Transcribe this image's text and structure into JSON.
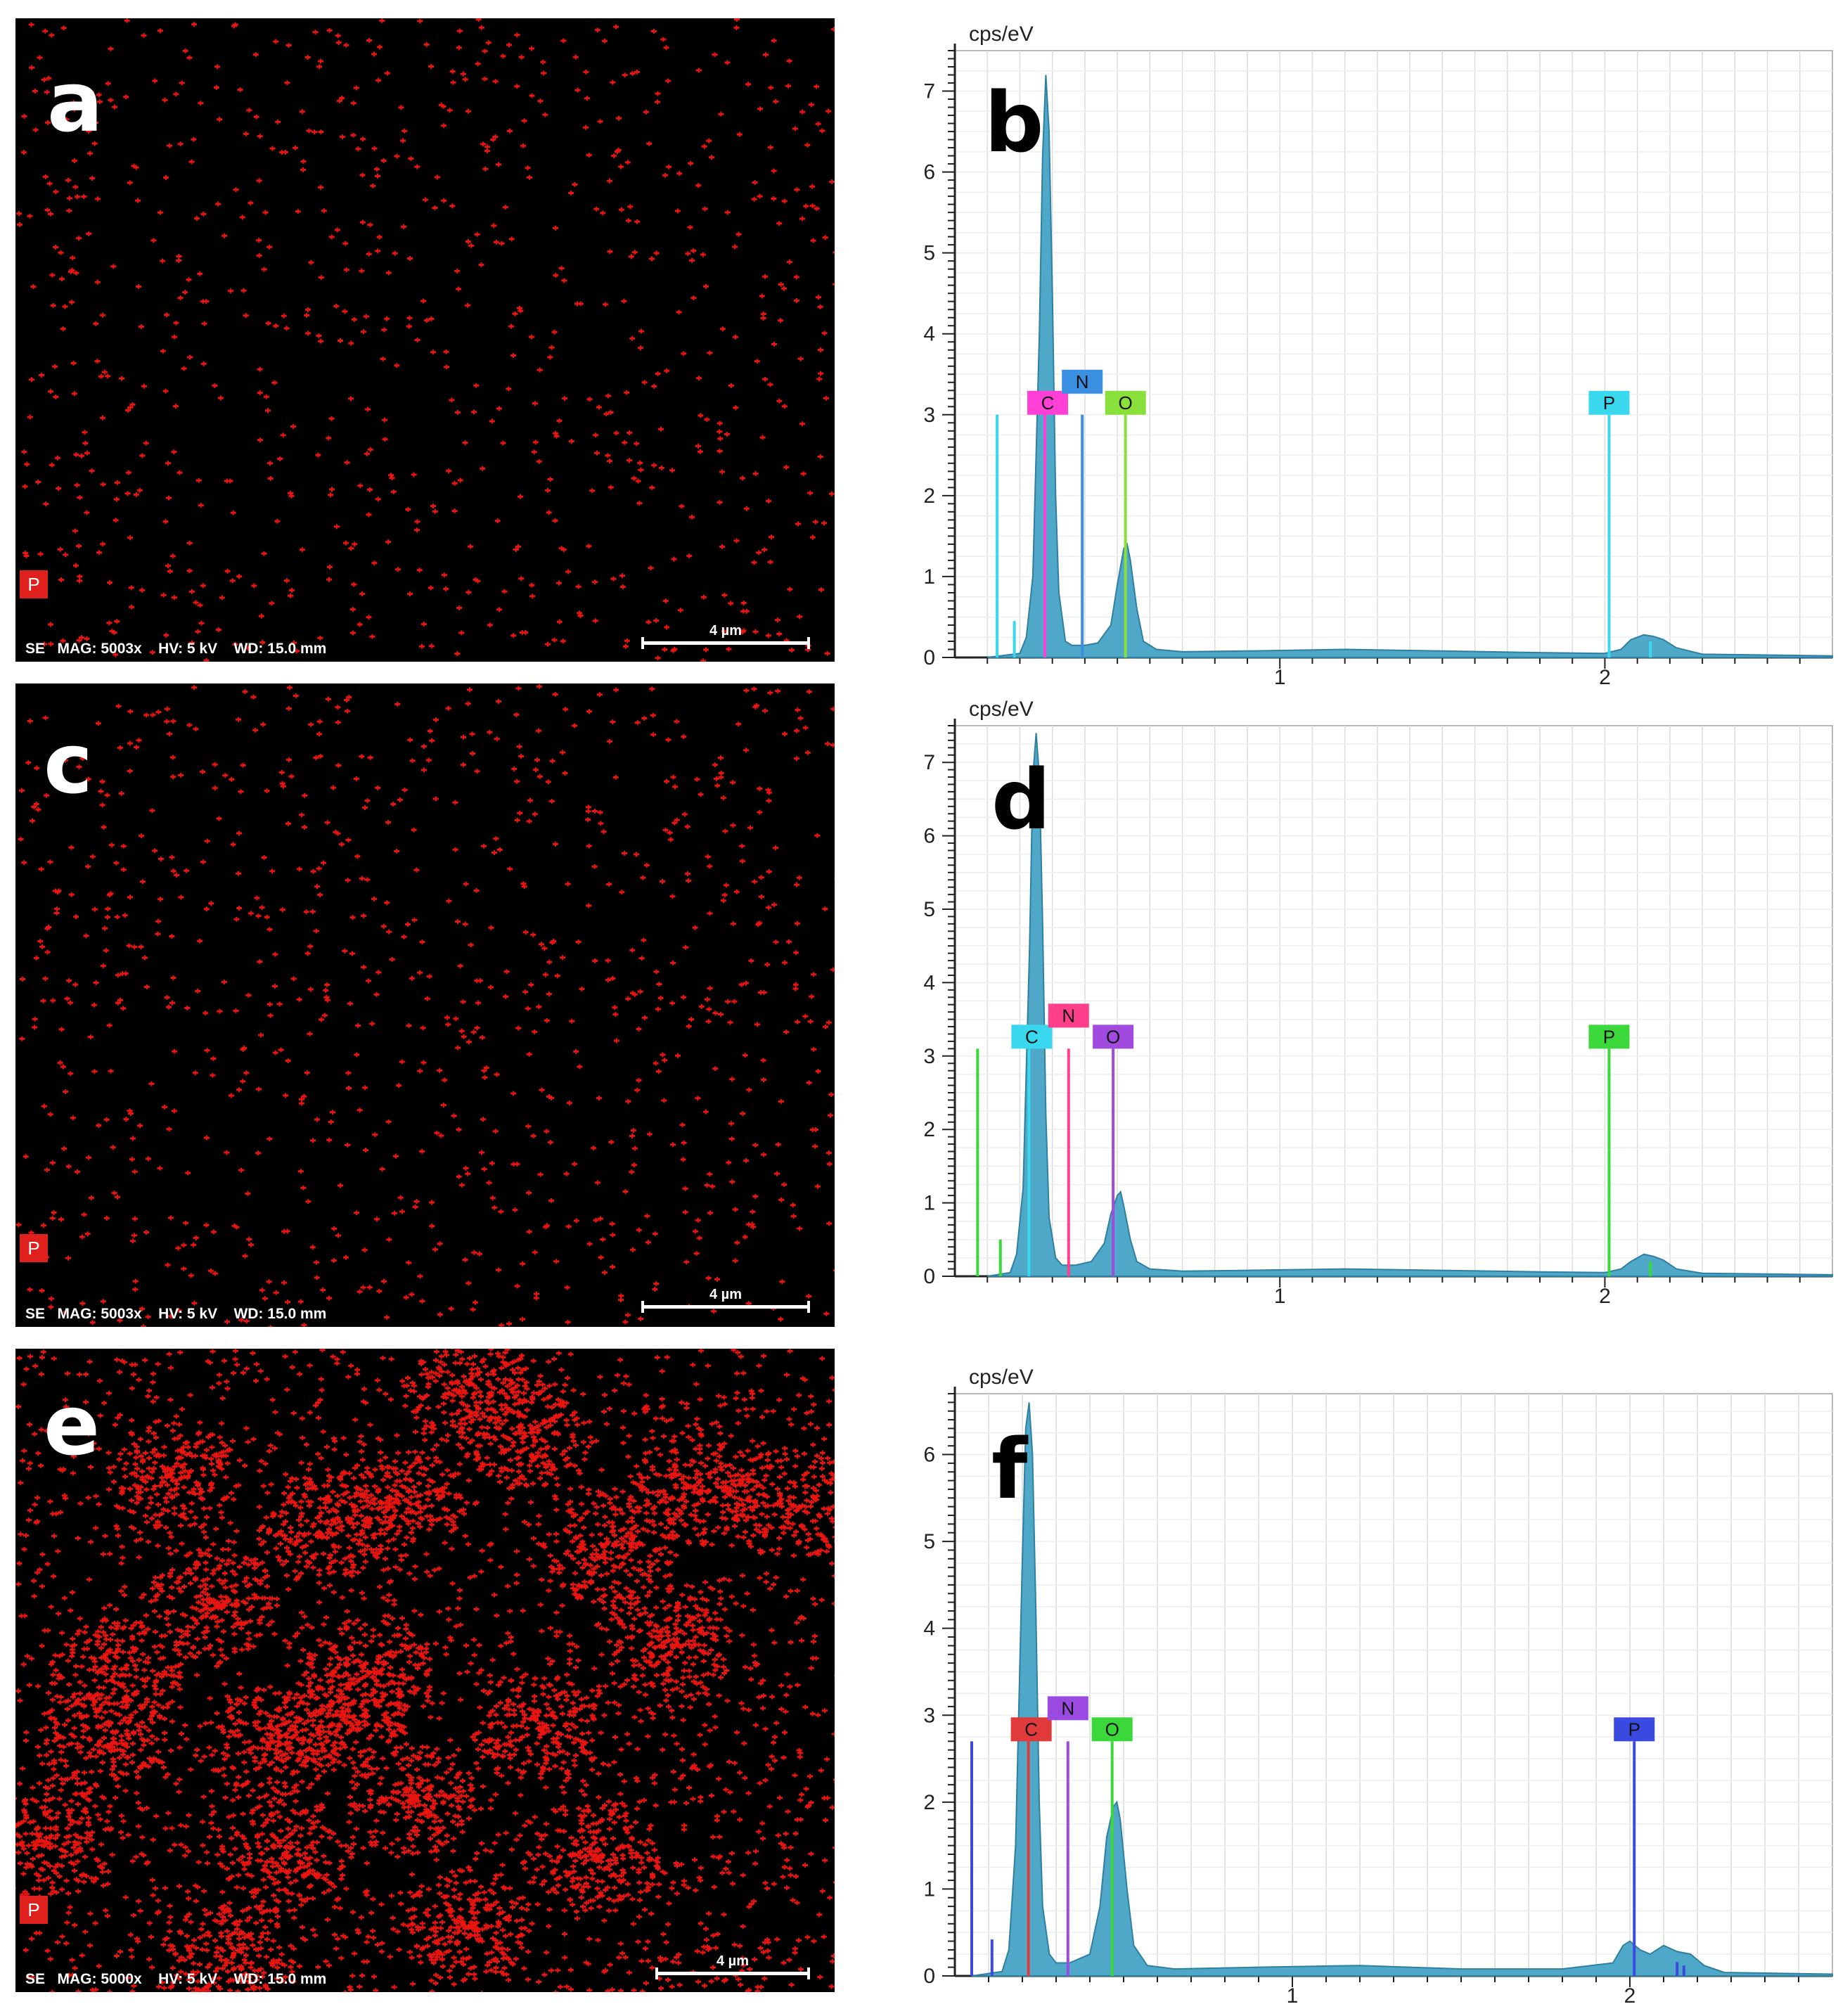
{
  "maps": [
    {
      "letter": "a",
      "element_badge": "P",
      "info": "SE   MAG: 5003x    HV: 5 kV    WD: 15.0 mm",
      "scale_label": "4 µm",
      "density": 0.9
    },
    {
      "letter": "c",
      "element_badge": "P",
      "info": "SE   MAG: 5003x    HV: 5 kV    WD: 15.0 mm",
      "scale_label": "4 µm",
      "density": 1.0
    },
    {
      "letter": "e",
      "element_badge": "P",
      "info": "SE   MAG: 5000x    HV: 5 kV    WD: 15.0 mm",
      "scale_label": "4 µm",
      "density": 2.6
    }
  ],
  "chart_data": [
    {
      "type": "area",
      "letter": "b",
      "ylabel": "cps/eV",
      "xlim": [
        0,
        2.7
      ],
      "ylim": [
        0,
        7.5
      ],
      "xticks": [
        1,
        2
      ],
      "yticks": [
        0,
        1,
        2,
        3,
        4,
        5,
        6,
        7
      ],
      "grid": true,
      "spectrum": {
        "x": [
          0.1,
          0.2,
          0.22,
          0.24,
          0.26,
          0.27,
          0.28,
          0.29,
          0.3,
          0.31,
          0.32,
          0.34,
          0.36,
          0.4,
          0.44,
          0.48,
          0.5,
          0.52,
          0.53,
          0.54,
          0.56,
          0.58,
          0.62,
          0.7,
          0.9,
          1.2,
          1.5,
          1.8,
          2.0,
          2.05,
          2.08,
          2.12,
          2.15,
          2.18,
          2.22,
          2.3,
          2.7
        ],
        "y": [
          0,
          0.05,
          0.25,
          1.0,
          4.0,
          6.2,
          7.2,
          6.5,
          4.5,
          2.0,
          0.8,
          0.2,
          0.15,
          0.15,
          0.18,
          0.4,
          0.9,
          1.35,
          1.4,
          1.2,
          0.6,
          0.2,
          0.1,
          0.07,
          0.08,
          0.1,
          0.08,
          0.06,
          0.05,
          0.1,
          0.22,
          0.28,
          0.26,
          0.22,
          0.12,
          0.04,
          0.02
        ]
      },
      "markers": [
        {
          "label": "C",
          "x": 0.277,
          "height": 3.0,
          "color": "#ff3fd6"
        },
        {
          "label": "N",
          "x": 0.392,
          "height": 3.0,
          "color": "#3a8fe0"
        },
        {
          "label": "O",
          "x": 0.525,
          "height": 3.0,
          "color": "#8ae03a"
        },
        {
          "label": "P",
          "x": 2.013,
          "height": 3.0,
          "color": "#3ad8ef"
        }
      ],
      "extra_lines": [
        {
          "x": 0.13,
          "height": 3.0,
          "color": "#3ad8ef"
        },
        {
          "x": 0.183,
          "height": 0.45,
          "color": "#3ad8ef"
        },
        {
          "x": 2.14,
          "height": 0.2,
          "color": "#3ad8ef"
        }
      ]
    },
    {
      "type": "area",
      "letter": "d",
      "ylabel": "cps/eV",
      "xlim": [
        0,
        2.7
      ],
      "ylim": [
        0,
        7.5
      ],
      "xticks": [
        1,
        2
      ],
      "yticks": [
        0,
        1,
        2,
        3,
        4,
        5,
        6,
        7
      ],
      "grid": true,
      "spectrum": {
        "x": [
          0.1,
          0.17,
          0.19,
          0.21,
          0.23,
          0.24,
          0.25,
          0.26,
          0.27,
          0.28,
          0.29,
          0.31,
          0.33,
          0.37,
          0.42,
          0.46,
          0.48,
          0.5,
          0.51,
          0.52,
          0.54,
          0.56,
          0.6,
          0.7,
          0.9,
          1.2,
          1.5,
          1.8,
          2.0,
          2.05,
          2.08,
          2.12,
          2.15,
          2.18,
          2.22,
          2.3,
          2.7
        ],
        "y": [
          0,
          0.05,
          0.3,
          1.2,
          4.5,
          6.8,
          7.4,
          6.8,
          4.8,
          2.2,
          0.8,
          0.25,
          0.15,
          0.15,
          0.2,
          0.45,
          0.85,
          1.1,
          1.15,
          0.95,
          0.5,
          0.2,
          0.1,
          0.07,
          0.08,
          0.1,
          0.08,
          0.06,
          0.05,
          0.1,
          0.2,
          0.3,
          0.27,
          0.22,
          0.1,
          0.04,
          0.02
        ]
      },
      "markers": [
        {
          "label": "C",
          "x": 0.228,
          "height": 3.1,
          "color": "#3ad8ef"
        },
        {
          "label": "N",
          "x": 0.35,
          "height": 3.1,
          "color": "#ff3f8a"
        },
        {
          "label": "O",
          "x": 0.487,
          "height": 3.1,
          "color": "#a04ae0"
        },
        {
          "label": "P",
          "x": 2.013,
          "height": 3.1,
          "color": "#3ad83a"
        }
      ],
      "extra_lines": [
        {
          "x": 0.07,
          "height": 3.1,
          "color": "#3ad83a"
        },
        {
          "x": 0.14,
          "height": 0.5,
          "color": "#3ad83a"
        },
        {
          "x": 2.14,
          "height": 0.2,
          "color": "#3ad83a"
        }
      ]
    },
    {
      "type": "area",
      "letter": "f",
      "ylabel": "cps/eV",
      "xlim": [
        0,
        2.6
      ],
      "ylim": [
        0,
        6.7
      ],
      "xticks": [
        1,
        2
      ],
      "yticks": [
        0,
        1,
        2,
        3,
        4,
        5,
        6
      ],
      "grid": true,
      "spectrum": {
        "x": [
          0.05,
          0.14,
          0.16,
          0.18,
          0.2,
          0.21,
          0.22,
          0.23,
          0.24,
          0.25,
          0.26,
          0.28,
          0.3,
          0.34,
          0.4,
          0.43,
          0.45,
          0.47,
          0.48,
          0.49,
          0.51,
          0.53,
          0.57,
          0.65,
          0.9,
          1.2,
          1.5,
          1.8,
          1.95,
          1.98,
          2.0,
          2.03,
          2.06,
          2.1,
          2.14,
          2.18,
          2.22,
          2.28,
          2.6
        ],
        "y": [
          0,
          0.05,
          0.3,
          1.5,
          4.8,
          6.3,
          6.6,
          6.0,
          4.2,
          2.0,
          0.8,
          0.25,
          0.15,
          0.15,
          0.25,
          0.8,
          1.6,
          1.95,
          2.0,
          1.8,
          1.0,
          0.35,
          0.12,
          0.08,
          0.1,
          0.12,
          0.08,
          0.08,
          0.15,
          0.35,
          0.4,
          0.3,
          0.25,
          0.35,
          0.28,
          0.25,
          0.12,
          0.04,
          0.02
        ]
      },
      "markers": [
        {
          "label": "C",
          "x": 0.218,
          "height": 2.7,
          "color": "#e03a3a"
        },
        {
          "label": "N",
          "x": 0.335,
          "height": 2.7,
          "color": "#9a4ae0"
        },
        {
          "label": "O",
          "x": 0.466,
          "height": 2.7,
          "color": "#3ad83a"
        },
        {
          "label": "P",
          "x": 2.013,
          "height": 2.7,
          "color": "#3a4ae0"
        }
      ],
      "extra_lines": [
        {
          "x": 0.05,
          "height": 2.7,
          "color": "#3a4ae0"
        },
        {
          "x": 0.11,
          "height": 0.42,
          "color": "#3a4ae0"
        },
        {
          "x": 2.14,
          "height": 0.16,
          "color": "#3a4ae0"
        },
        {
          "x": 2.16,
          "height": 0.12,
          "color": "#3a4ae0"
        }
      ]
    }
  ]
}
